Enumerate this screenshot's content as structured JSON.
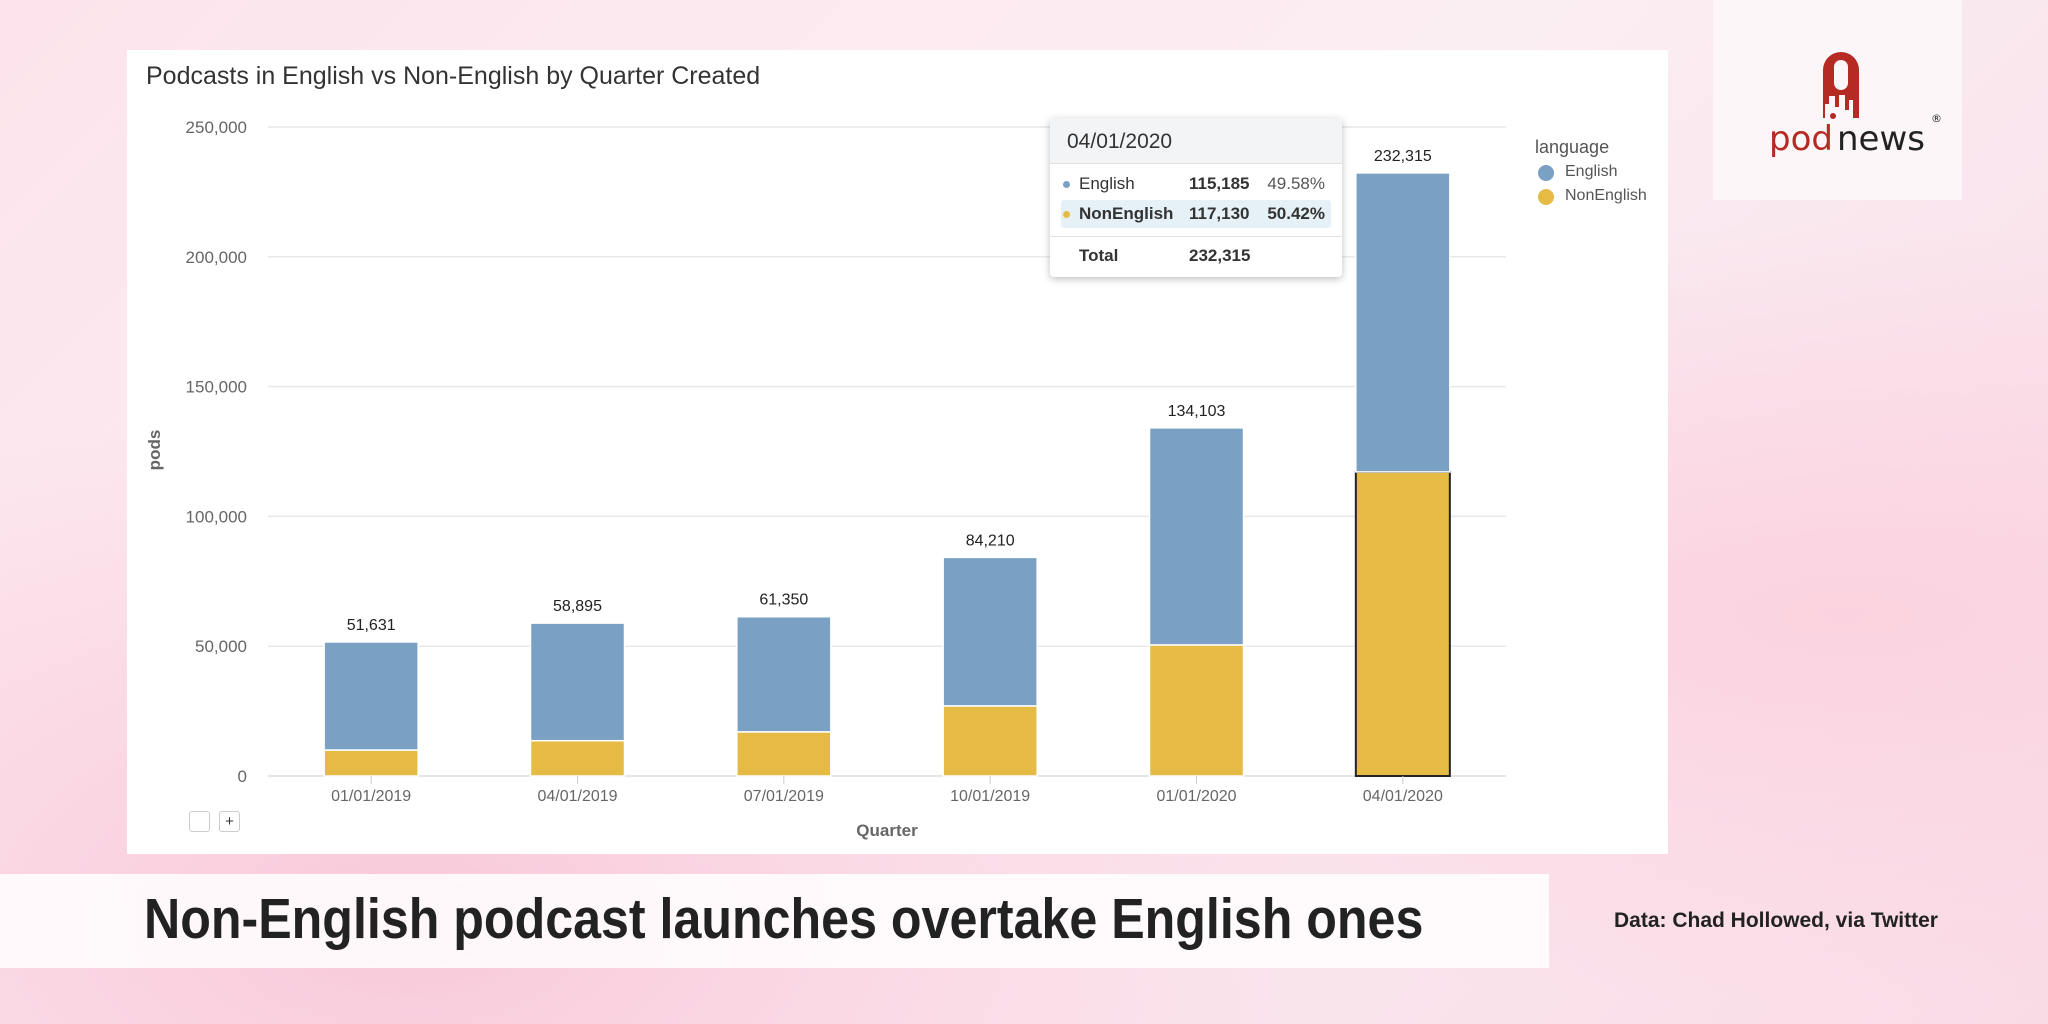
{
  "chart_data": {
    "type": "bar",
    "stacked": true,
    "title": "Podcasts in English vs Non-English by Quarter Created",
    "xlabel": "Quarter",
    "ylabel": "pods",
    "ylim": [
      0,
      250000
    ],
    "yticks": [
      "0",
      "50,000",
      "100,000",
      "150,000",
      "200,000",
      "250,000"
    ],
    "ytick_values": [
      0,
      50000,
      100000,
      150000,
      200000,
      250000
    ],
    "grid": true,
    "categories": [
      "01/01/2019",
      "04/01/2019",
      "07/01/2019",
      "10/01/2019",
      "01/01/2020",
      "04/01/2020"
    ],
    "totals": [
      51631,
      58895,
      61350,
      84210,
      134103,
      232315
    ],
    "total_labels": [
      "51,631",
      "58,895",
      "61,350",
      "84,210",
      "134,103",
      "232,315"
    ],
    "series": [
      {
        "name": "NonEnglish",
        "color": "#e6bb45",
        "values": [
          10000,
          13600,
          17000,
          27000,
          50500,
          117130
        ]
      },
      {
        "name": "English",
        "color": "#7aa0c4",
        "values": [
          41631,
          45295,
          44350,
          57210,
          83603,
          115185
        ]
      }
    ],
    "legend": {
      "title": "language",
      "placement": "right"
    },
    "tooltip": {
      "title": "04/01/2020",
      "rows": [
        {
          "name": "English",
          "value": "115,185",
          "pct": "49.58%",
          "color": "#7aa0c4"
        },
        {
          "name": "NonEnglish",
          "value": "117,130",
          "pct": "50.42%",
          "color": "#e6bb45"
        }
      ],
      "total_label": "Total",
      "total_value": "232,315"
    }
  },
  "controls": {
    "minus": "",
    "plus": "+"
  },
  "logo": {
    "text_pod": "pod",
    "text_news": "news",
    "mark": "®"
  },
  "caption": "Non-English podcast launches overtake English ones",
  "credit": "Data: Chad Hollowed, via Twitter"
}
